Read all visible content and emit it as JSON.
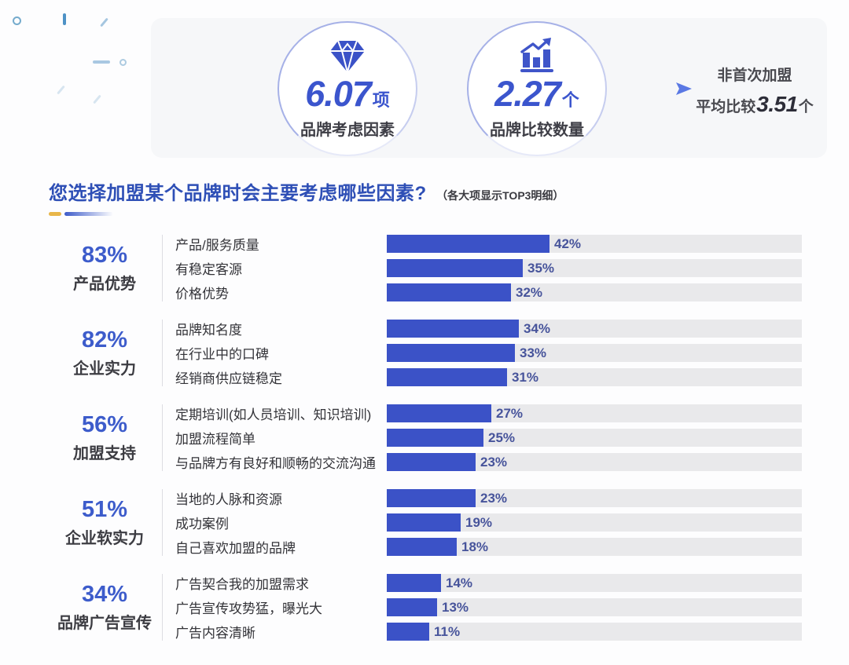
{
  "summary": {
    "stats": [
      {
        "icon": "diamond-icon",
        "value": "6.07",
        "unit": "项",
        "label": "品牌考虑因素"
      },
      {
        "icon": "bar-chart-icon",
        "value": "2.27",
        "unit": "个",
        "label": "品牌比较数量"
      }
    ],
    "note": {
      "line1": "非首次加盟",
      "prefix": "平均比较",
      "value": "3.51",
      "suffix": "个"
    }
  },
  "section": {
    "title": "您选择加盟某个品牌时会主要考虑哪些因素?",
    "subtitle": "（各大项显示TOP3明细）"
  },
  "chart_data": {
    "type": "bar",
    "orientation": "horizontal",
    "unit": "%",
    "xlim": [
      0,
      107
    ],
    "grid": false,
    "legend": false,
    "groups": [
      {
        "percent": "83%",
        "name": "产品优势",
        "items": [
          {
            "label": "产品/服务质量",
            "value": 42,
            "value_label": "42%"
          },
          {
            "label": "有稳定客源",
            "value": 35,
            "value_label": "35%"
          },
          {
            "label": "价格优势",
            "value": 32,
            "value_label": "32%"
          }
        ]
      },
      {
        "percent": "82%",
        "name": "企业实力",
        "items": [
          {
            "label": "品牌知名度",
            "value": 34,
            "value_label": "34%"
          },
          {
            "label": "在行业中的口碑",
            "value": 33,
            "value_label": "33%"
          },
          {
            "label": "经销商供应链稳定",
            "value": 31,
            "value_label": "31%"
          }
        ]
      },
      {
        "percent": "56%",
        "name": "加盟支持",
        "items": [
          {
            "label": "定期培训(如人员培训、知识培训)",
            "value": 27,
            "value_label": "27%"
          },
          {
            "label": "加盟流程简单",
            "value": 25,
            "value_label": "25%"
          },
          {
            "label": "与品牌方有良好和顺畅的交流沟通",
            "value": 23,
            "value_label": "23%"
          }
        ]
      },
      {
        "percent": "51%",
        "name": "企业软实力",
        "items": [
          {
            "label": "当地的人脉和资源",
            "value": 23,
            "value_label": "23%"
          },
          {
            "label": "成功案例",
            "value": 19,
            "value_label": "19%"
          },
          {
            "label": "自己喜欢加盟的品牌",
            "value": 18,
            "value_label": "18%"
          }
        ]
      },
      {
        "percent": "34%",
        "name": "品牌广告宣传",
        "items": [
          {
            "label": "广告契合我的加盟需求",
            "value": 14,
            "value_label": "14%"
          },
          {
            "label": "广告宣传攻势猛，曝光大",
            "value": 13,
            "value_label": "13%"
          },
          {
            "label": "广告内容清晰",
            "value": 11,
            "value_label": "11%"
          }
        ]
      }
    ],
    "colors": {
      "bar": "#3b52c7",
      "track": "#e9e9eb",
      "value_label": "#47549b",
      "accent_blue": "#3b55cd",
      "title_blue": "#2e4fb6",
      "gold": "#e8b64a"
    }
  }
}
